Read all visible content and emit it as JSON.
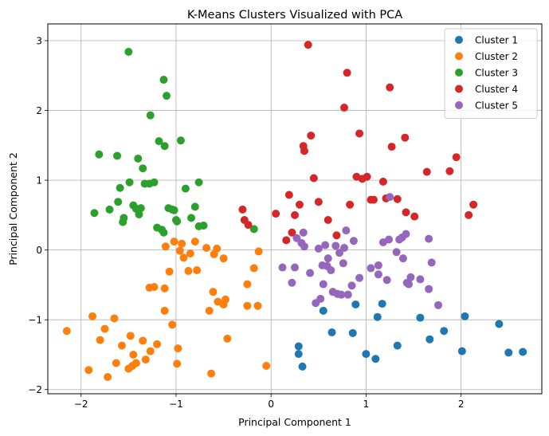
{
  "chart_data": {
    "type": "scatter",
    "title": "K-Means Clusters Visualized with PCA",
    "xlabel": "Principal Component 1",
    "ylabel": "Principal Component 2",
    "xlim": [
      -2.35,
      2.85
    ],
    "ylim": [
      -2.06,
      3.24
    ],
    "xticks": [
      -2,
      -1,
      0,
      1,
      2
    ],
    "yticks": [
      -2,
      -1,
      0,
      1,
      2,
      3
    ],
    "xtick_labels": [
      "−2",
      "−1",
      "0",
      "1",
      "2"
    ],
    "ytick_labels": [
      "−2",
      "−1",
      "0",
      "1",
      "2",
      "3"
    ],
    "grid": true,
    "legend_position": "top-right",
    "series": [
      {
        "name": "Cluster 1",
        "color": "#1f77b4",
        "points": [
          [
            0.29,
            -1.38
          ],
          [
            0.29,
            -1.49
          ],
          [
            0.33,
            -1.67
          ],
          [
            0.55,
            -0.87
          ],
          [
            0.64,
            -1.18
          ],
          [
            0.86,
            -1.19
          ],
          [
            0.89,
            -0.78
          ],
          [
            1.0,
            -1.49
          ],
          [
            1.1,
            -1.56
          ],
          [
            1.12,
            -0.96
          ],
          [
            1.17,
            -0.77
          ],
          [
            1.33,
            -1.37
          ],
          [
            1.57,
            -0.97
          ],
          [
            1.67,
            -1.28
          ],
          [
            1.82,
            -1.16
          ],
          [
            2.01,
            -1.45
          ],
          [
            2.04,
            -0.95
          ],
          [
            2.4,
            -1.06
          ],
          [
            2.5,
            -1.47
          ],
          [
            2.65,
            -1.46
          ]
        ]
      },
      {
        "name": "Cluster 2",
        "color": "#ff7f0e",
        "points": [
          [
            -2.15,
            -1.16
          ],
          [
            -1.92,
            -1.72
          ],
          [
            -1.88,
            -0.95
          ],
          [
            -1.8,
            -1.29
          ],
          [
            -1.75,
            -1.13
          ],
          [
            -1.72,
            -1.82
          ],
          [
            -1.65,
            -0.98
          ],
          [
            -1.63,
            -1.62
          ],
          [
            -1.57,
            -1.37
          ],
          [
            -1.5,
            -1.7
          ],
          [
            -1.48,
            -1.23
          ],
          [
            -1.46,
            -1.66
          ],
          [
            -1.45,
            -1.5
          ],
          [
            -1.42,
            -1.62
          ],
          [
            -1.35,
            -1.3
          ],
          [
            -1.32,
            -1.57
          ],
          [
            -1.28,
            -0.54
          ],
          [
            -1.27,
            -1.45
          ],
          [
            -1.23,
            -0.53
          ],
          [
            -1.2,
            -1.35
          ],
          [
            -1.12,
            -0.87
          ],
          [
            -1.12,
            -0.55
          ],
          [
            -1.11,
            0.05
          ],
          [
            -1.07,
            -0.31
          ],
          [
            -1.04,
            -1.07
          ],
          [
            -1.02,
            0.12
          ],
          [
            -0.99,
            -1.63
          ],
          [
            -0.98,
            -1.41
          ],
          [
            -0.96,
            -0.01
          ],
          [
            -0.94,
            0.09
          ],
          [
            -0.92,
            -0.11
          ],
          [
            -0.87,
            -0.3
          ],
          [
            -0.85,
            -0.05
          ],
          [
            -0.8,
            0.12
          ],
          [
            -0.78,
            -0.29
          ],
          [
            -0.68,
            0.03
          ],
          [
            -0.65,
            -0.87
          ],
          [
            -0.63,
            -1.77
          ],
          [
            -0.61,
            -0.6
          ],
          [
            -0.6,
            -0.06
          ],
          [
            -0.57,
            0.02
          ],
          [
            -0.56,
            -0.74
          ],
          [
            -0.5,
            -0.78
          ],
          [
            -0.5,
            -0.12
          ],
          [
            -0.48,
            -0.71
          ],
          [
            -0.46,
            -1.27
          ],
          [
            -0.25,
            -0.49
          ],
          [
            -0.25,
            -0.8
          ],
          [
            -0.18,
            -0.26
          ],
          [
            -0.14,
            -0.8
          ],
          [
            -0.13,
            -0.02
          ],
          [
            -0.05,
            -1.66
          ]
        ]
      },
      {
        "name": "Cluster 3",
        "color": "#2ca02c",
        "points": [
          [
            -1.86,
            0.53
          ],
          [
            -1.81,
            1.37
          ],
          [
            -1.7,
            0.58
          ],
          [
            -1.62,
            1.35
          ],
          [
            -1.61,
            0.69
          ],
          [
            -1.59,
            0.89
          ],
          [
            -1.56,
            0.4
          ],
          [
            -1.55,
            0.46
          ],
          [
            -1.5,
            2.84
          ],
          [
            -1.49,
            0.97
          ],
          [
            -1.45,
            0.64
          ],
          [
            -1.42,
            0.59
          ],
          [
            -1.4,
            1.31
          ],
          [
            -1.39,
            0.51
          ],
          [
            -1.37,
            0.6
          ],
          [
            -1.35,
            1.17
          ],
          [
            -1.33,
            0.95
          ],
          [
            -1.28,
            0.95
          ],
          [
            -1.27,
            1.93
          ],
          [
            -1.23,
            0.97
          ],
          [
            -1.2,
            0.32
          ],
          [
            -1.18,
            1.56
          ],
          [
            -1.15,
            0.29
          ],
          [
            -1.13,
            2.44
          ],
          [
            -1.13,
            0.25
          ],
          [
            -1.12,
            1.49
          ],
          [
            -1.1,
            2.21
          ],
          [
            -1.08,
            0.6
          ],
          [
            -1.04,
            0.58
          ],
          [
            -1.02,
            0.57
          ],
          [
            -1.0,
            0.43
          ],
          [
            -0.99,
            0.41
          ],
          [
            -0.95,
            1.57
          ],
          [
            -0.9,
            0.88
          ],
          [
            -0.84,
            0.46
          ],
          [
            -0.8,
            0.62
          ],
          [
            -0.76,
            0.97
          ],
          [
            -0.76,
            0.34
          ],
          [
            -0.71,
            0.35
          ],
          [
            -0.18,
            0.3
          ]
        ]
      },
      {
        "name": "Cluster 4",
        "color": "#d62728",
        "points": [
          [
            -0.3,
            0.58
          ],
          [
            -0.28,
            0.43
          ],
          [
            -0.24,
            0.36
          ],
          [
            0.05,
            0.52
          ],
          [
            0.16,
            0.14
          ],
          [
            0.19,
            0.79
          ],
          [
            0.22,
            0.25
          ],
          [
            0.25,
            0.5
          ],
          [
            0.3,
            0.65
          ],
          [
            0.34,
            1.49
          ],
          [
            0.35,
            1.42
          ],
          [
            0.39,
            2.94
          ],
          [
            0.42,
            1.64
          ],
          [
            0.45,
            1.03
          ],
          [
            0.5,
            0.69
          ],
          [
            0.6,
            0.43
          ],
          [
            0.69,
            0.21
          ],
          [
            0.77,
            2.04
          ],
          [
            0.8,
            2.54
          ],
          [
            0.83,
            0.65
          ],
          [
            0.9,
            1.05
          ],
          [
            0.93,
            1.67
          ],
          [
            0.96,
            1.02
          ],
          [
            1.01,
            1.05
          ],
          [
            1.05,
            0.72
          ],
          [
            1.08,
            0.72
          ],
          [
            1.18,
            0.98
          ],
          [
            1.21,
            0.74
          ],
          [
            1.25,
            2.33
          ],
          [
            1.27,
            1.48
          ],
          [
            1.33,
            0.73
          ],
          [
            1.41,
            1.61
          ],
          [
            1.42,
            0.54
          ],
          [
            1.51,
            0.48
          ],
          [
            1.64,
            1.12
          ],
          [
            1.88,
            1.13
          ],
          [
            1.95,
            1.33
          ],
          [
            2.08,
            0.5
          ],
          [
            2.13,
            0.65
          ]
        ]
      },
      {
        "name": "Cluster 5",
        "color": "#9467bd",
        "points": [
          [
            0.12,
            -0.25
          ],
          [
            0.22,
            -0.47
          ],
          [
            0.25,
            -0.25
          ],
          [
            0.27,
            0.17
          ],
          [
            0.32,
            0.1
          ],
          [
            0.34,
            0.25
          ],
          [
            0.35,
            0.05
          ],
          [
            0.41,
            -0.33
          ],
          [
            0.47,
            -0.76
          ],
          [
            0.5,
            0.02
          ],
          [
            0.52,
            -0.7
          ],
          [
            0.54,
            -0.22
          ],
          [
            0.55,
            -0.49
          ],
          [
            0.57,
            0.07
          ],
          [
            0.59,
            -0.23
          ],
          [
            0.6,
            -0.12
          ],
          [
            0.63,
            -0.29
          ],
          [
            0.65,
            -0.6
          ],
          [
            0.68,
            0.06
          ],
          [
            0.7,
            -0.63
          ],
          [
            0.72,
            -0.04
          ],
          [
            0.74,
            -0.64
          ],
          [
            0.76,
            -0.19
          ],
          [
            0.77,
            0.03
          ],
          [
            0.79,
            0.28
          ],
          [
            0.81,
            -0.64
          ],
          [
            0.85,
            -0.51
          ],
          [
            0.87,
            0.13
          ],
          [
            0.93,
            -0.4
          ],
          [
            1.05,
            -0.26
          ],
          [
            1.13,
            -0.35
          ],
          [
            1.13,
            -0.22
          ],
          [
            1.18,
            0.11
          ],
          [
            1.22,
            -0.43
          ],
          [
            1.24,
            0.15
          ],
          [
            1.25,
            0.76
          ],
          [
            1.32,
            -0.03
          ],
          [
            1.35,
            0.15
          ],
          [
            1.38,
            0.18
          ],
          [
            1.39,
            -0.12
          ],
          [
            1.42,
            0.23
          ],
          [
            1.43,
            -0.47
          ],
          [
            1.45,
            -0.49
          ],
          [
            1.47,
            -0.39
          ],
          [
            1.57,
            -0.42
          ],
          [
            1.66,
            0.16
          ],
          [
            1.66,
            -0.56
          ],
          [
            1.69,
            -0.18
          ],
          [
            1.76,
            -0.79
          ]
        ]
      }
    ]
  }
}
